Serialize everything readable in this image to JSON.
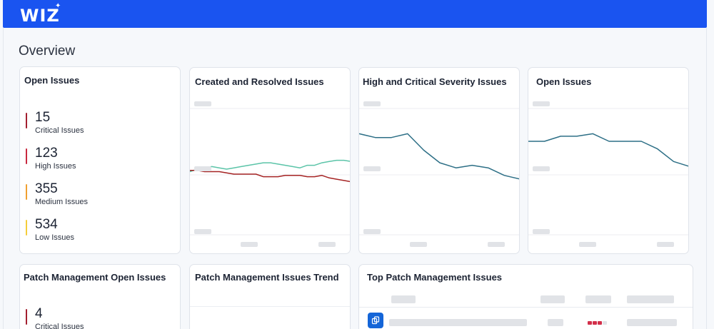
{
  "brand": {
    "name": "WIZ",
    "star": "✦"
  },
  "page": {
    "title": "Overview"
  },
  "open_issues": {
    "title": "Open Issues",
    "items": [
      {
        "count": "15",
        "label": "Critical Issues",
        "color": "#a31f2f"
      },
      {
        "count": "123",
        "label": "High Issues",
        "color": "#c8283f"
      },
      {
        "count": "355",
        "label": "Medium Issues",
        "color": "#f0a030"
      },
      {
        "count": "534",
        "label": "Low Issues",
        "color": "#f5cd3a"
      }
    ]
  },
  "charts": {
    "created_resolved": {
      "title": "Created and Resolved Issues"
    },
    "high_critical": {
      "title": "High and Critical Severity Issues"
    },
    "open_issues_chart": {
      "title": "Open Issues"
    }
  },
  "chart_data": [
    {
      "type": "line",
      "title": "Created and Resolved Issues",
      "x": [
        0,
        1,
        2,
        3,
        4,
        5,
        6,
        7,
        8,
        9,
        10,
        11,
        12,
        13,
        14,
        15,
        16,
        17,
        18,
        19,
        20,
        21,
        22
      ],
      "series": [
        {
          "color": "#5bc4a8",
          "values": [
            0.5,
            0.52,
            0.53,
            0.54,
            0.53,
            0.52,
            0.53,
            0.54,
            0.55,
            0.56,
            0.57,
            0.57,
            0.56,
            0.55,
            0.54,
            0.53,
            0.55,
            0.55,
            0.57,
            0.58,
            0.59,
            0.59,
            0.58
          ]
        },
        {
          "color": "#a52323",
          "values": [
            0.51,
            0.51,
            0.5,
            0.5,
            0.5,
            0.49,
            0.48,
            0.48,
            0.48,
            0.48,
            0.46,
            0.46,
            0.46,
            0.47,
            0.47,
            0.47,
            0.46,
            0.46,
            0.47,
            0.45,
            0.44,
            0.43,
            0.42
          ]
        }
      ]
    },
    {
      "type": "line",
      "title": "High and Critical Severity Issues",
      "x": [
        0,
        1,
        2,
        3,
        4,
        5,
        6,
        7,
        8,
        9,
        10
      ],
      "series": [
        {
          "color": "#2d6f86",
          "values": [
            0.8,
            0.77,
            0.77,
            0.8,
            0.67,
            0.57,
            0.53,
            0.55,
            0.53,
            0.47,
            0.44
          ]
        }
      ]
    },
    {
      "type": "line",
      "title": "Open Issues",
      "x": [
        0,
        1,
        2,
        3,
        4,
        5,
        6,
        7,
        8,
        9,
        10
      ],
      "series": [
        {
          "color": "#2d6f86",
          "values": [
            0.74,
            0.74,
            0.78,
            0.78,
            0.8,
            0.74,
            0.74,
            0.74,
            0.68,
            0.58,
            0.54
          ]
        }
      ]
    }
  ],
  "patch_open": {
    "title": "Patch Management Open Issues",
    "items": [
      {
        "count": "4",
        "label": "Critical Issues",
        "color": "#a31f2f"
      }
    ]
  },
  "patch_trend": {
    "title": "Patch Management Issues Trend"
  },
  "top_patch": {
    "title": "Top Patch Management Issues",
    "copy_icon": "copy-icon"
  }
}
